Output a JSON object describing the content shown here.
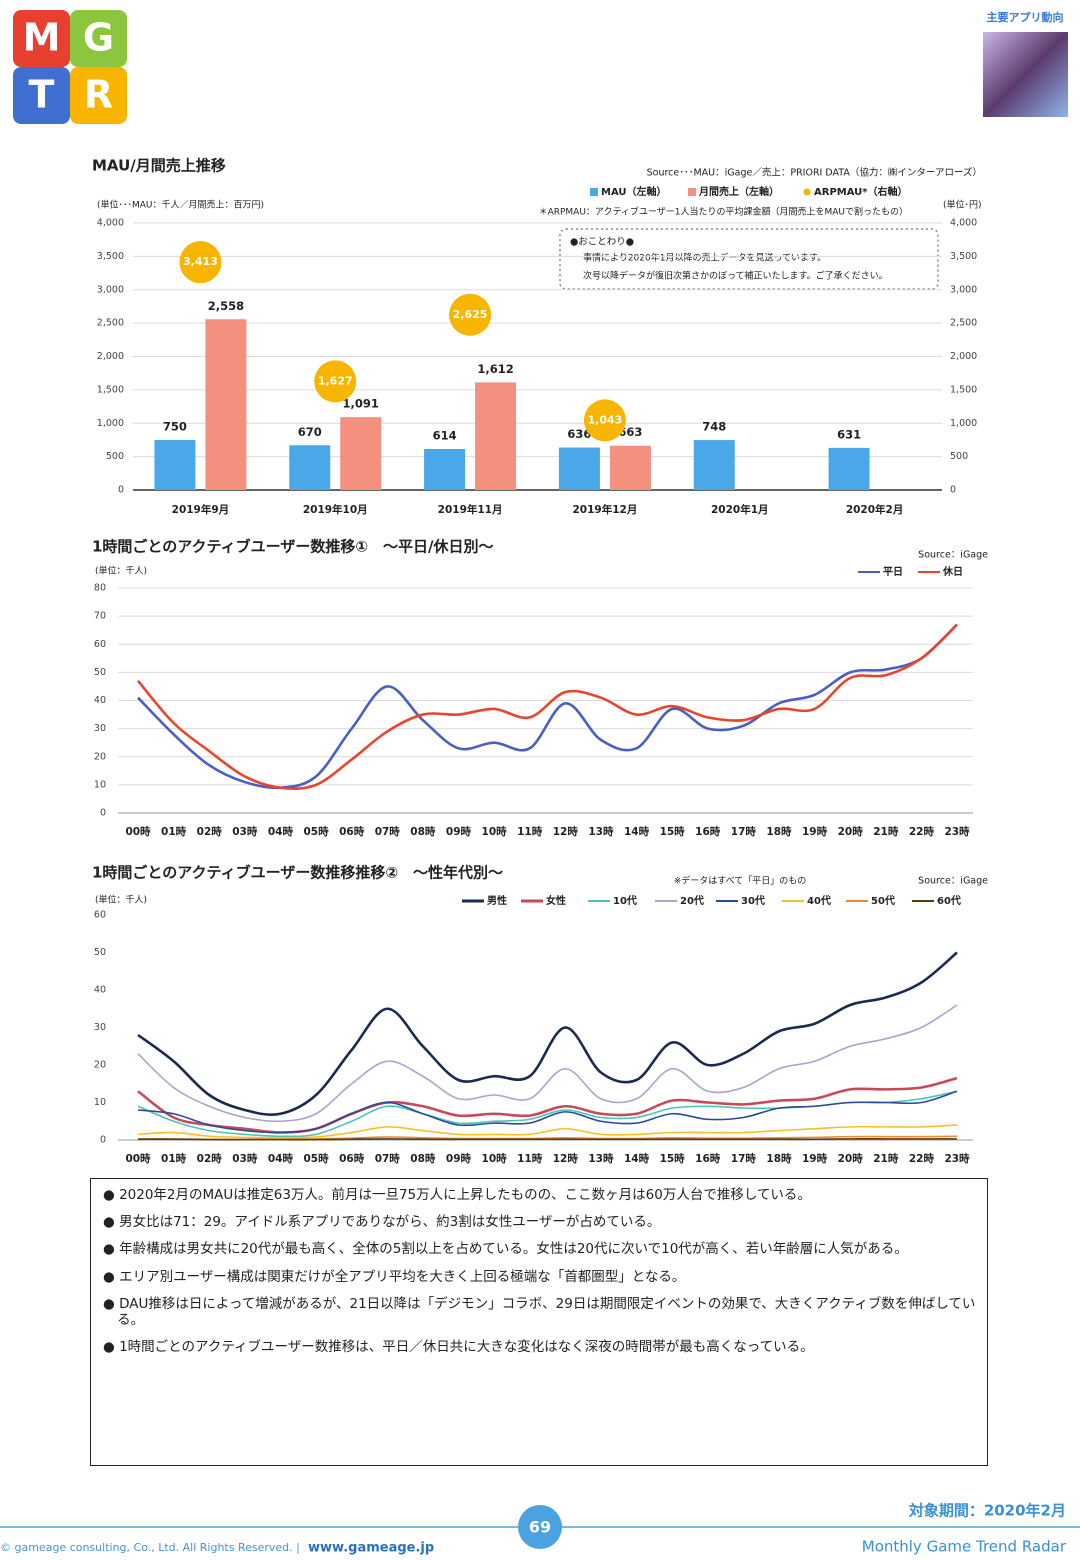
{
  "header": {
    "logo": [
      "M",
      "G",
      "T",
      "R"
    ],
    "section": "主要アプリ動向"
  },
  "chart_data": [
    {
      "type": "bar",
      "title": "MAU/月間売上推移",
      "source": "Source･･･MAU：iGage／売上：PRIORI DATA（協力：㈱インターアローズ）",
      "unit_left": "(単位･･･MAU：千人／月間売上：百万円)",
      "unit_right": "(単位･円)",
      "note": "＊ARPMAU：アクティブユーザー1人当たりの平均課金額（月間売上をMAUで割ったもの）",
      "notice": {
        "heading": "●おことわり●",
        "lines": [
          "事情により2020年1月以降の売上データを見送っています。",
          "次号以降データが復旧次第さかのぼって補正いたします。ご了承ください。"
        ]
      },
      "categories": [
        "2019年9月",
        "2019年10月",
        "2019年11月",
        "2019年12月",
        "2020年1月",
        "2020年2月"
      ],
      "series": [
        {
          "name": "MAU（左軸）",
          "color": "#4aa8e8",
          "values": [
            750,
            670,
            614,
            636,
            748,
            631
          ]
        },
        {
          "name": "月間売上（左軸）",
          "color": "#f4907e",
          "values": [
            2558,
            1091,
            1612,
            663,
            null,
            null
          ],
          "value_labels": [
            "2,558",
            "1,091",
            "1,612",
            "663",
            null,
            null
          ]
        },
        {
          "name": "ARPMAU*（右軸）",
          "color": "#f7b500",
          "axis": "y2",
          "marker": "circle",
          "values": [
            3413,
            1627,
            2625,
            1043,
            null,
            null
          ],
          "value_labels": [
            "3,413",
            "1,627",
            "2,625",
            "1,043",
            null,
            null
          ]
        }
      ],
      "ylim": [
        0,
        4000
      ],
      "yticks": [
        0,
        500,
        {
          "value": 1000,
          "label": "1,000"
        },
        {
          "value": 1500,
          "label": "1,500"
        },
        {
          "value": 2000,
          "label": "2,000"
        },
        {
          "value": 2500,
          "label": "2,500"
        },
        {
          "value": 3000,
          "label": "3,000"
        },
        {
          "value": 3500,
          "label": "3,500"
        },
        {
          "value": 4000,
          "label": "4,000"
        }
      ],
      "y2lim": [
        0,
        4000
      ],
      "y2ticks": [
        0,
        500,
        {
          "value": 1000,
          "label": "1,000"
        },
        {
          "value": 1500,
          "label": "1,500"
        },
        {
          "value": 2000,
          "label": "2,000"
        },
        {
          "value": 2500,
          "label": "2,500"
        },
        {
          "value": 3000,
          "label": "3,000"
        },
        {
          "value": 3500,
          "label": "3,500"
        },
        {
          "value": 4000,
          "label": "4,000"
        }
      ],
      "grid": true
    },
    {
      "type": "line",
      "title": "1時間ごとのアクティブユーザー数推移①　～平日/休日別～",
      "source": "Source：iGage",
      "unit": "(単位：千人)",
      "categories": [
        "00時",
        "01時",
        "02時",
        "03時",
        "04時",
        "05時",
        "06時",
        "07時",
        "08時",
        "09時",
        "10時",
        "11時",
        "12時",
        "13時",
        "14時",
        "15時",
        "16時",
        "17時",
        "18時",
        "19時",
        "20時",
        "21時",
        "22時",
        "23時"
      ],
      "series": [
        {
          "name": "平日",
          "color": "#4a5fc1",
          "values": [
            41,
            28,
            17,
            11,
            9,
            13,
            30,
            45,
            33,
            23,
            25,
            23,
            39,
            26,
            23,
            37,
            30,
            31,
            39,
            42,
            50,
            51,
            55,
            67
          ]
        },
        {
          "name": "休日",
          "color": "#e8452c",
          "values": [
            47,
            32,
            22,
            13,
            9,
            10,
            19,
            29,
            35,
            35,
            37,
            34,
            43,
            41,
            35,
            38,
            34,
            33,
            37,
            37,
            48,
            49,
            55,
            67
          ]
        }
      ],
      "ylim": [
        0,
        80
      ],
      "yticks": [
        0,
        10,
        20,
        30,
        40,
        50,
        60,
        70,
        80
      ],
      "grid": true
    },
    {
      "type": "line",
      "title": "1時間ごとのアクティブユーザー数推移推移②　～性年代別～",
      "note": "※データはすべて「平日」のもの",
      "source": "Source：iGage",
      "unit": "(単位：千人)",
      "categories": [
        "00時",
        "01時",
        "02時",
        "03時",
        "04時",
        "05時",
        "06時",
        "07時",
        "08時",
        "09時",
        "10時",
        "11時",
        "12時",
        "13時",
        "14時",
        "15時",
        "16時",
        "17時",
        "18時",
        "19時",
        "20時",
        "21時",
        "22時",
        "23時"
      ],
      "series": [
        {
          "name": "男性",
          "color": "#1b2a4e",
          "values": [
            28,
            21,
            12,
            8,
            7,
            12,
            24,
            35,
            25,
            16,
            17,
            17,
            30,
            18,
            16,
            26,
            20,
            23,
            29,
            31,
            36,
            38,
            42,
            50
          ]
        },
        {
          "name": "女性",
          "color": "#c84a5a",
          "values": [
            13,
            6,
            4,
            3,
            2,
            3,
            7,
            10,
            9,
            6.5,
            7,
            6.5,
            9,
            7,
            7,
            10.5,
            10,
            9.5,
            10.5,
            11,
            13.5,
            13.5,
            14,
            16.5
          ]
        },
        {
          "name": "10代",
          "color": "#4cc4b4",
          "values": [
            9,
            5,
            2.5,
            1.5,
            1,
            1.5,
            5,
            9,
            7,
            4.5,
            5,
            5.5,
            8,
            6,
            6,
            8.5,
            9,
            8.5,
            8.5,
            9,
            10,
            10,
            11,
            13
          ]
        },
        {
          "name": "20代",
          "color": "#a9a4cc",
          "values": [
            23,
            14,
            9,
            6,
            5,
            7,
            15,
            21,
            17,
            11,
            12,
            11,
            19,
            11,
            11,
            19,
            13,
            14,
            19,
            21,
            25,
            27,
            30,
            36
          ]
        },
        {
          "name": "30代",
          "color": "#2b4a9a",
          "values": [
            8,
            7,
            4,
            2.5,
            2,
            3,
            7,
            10,
            7,
            4,
            4.5,
            4.5,
            7.5,
            5,
            4.5,
            7,
            5.5,
            6,
            8.5,
            9,
            10,
            10,
            10,
            13
          ]
        },
        {
          "name": "40代",
          "color": "#f5c022",
          "values": [
            1.5,
            2,
            1,
            0.7,
            0.6,
            0.8,
            2,
            3.5,
            2.5,
            1.5,
            1.5,
            1.5,
            3,
            1.5,
            1.5,
            2,
            2,
            2,
            2.5,
            3,
            3.5,
            3.5,
            3.5,
            4
          ]
        },
        {
          "name": "50代",
          "color": "#f08a30",
          "values": [
            0.3,
            0.3,
            0.2,
            0.2,
            0.2,
            0.3,
            0.5,
            0.8,
            0.6,
            0.4,
            0.4,
            0.4,
            0.6,
            0.4,
            0.4,
            0.6,
            0.5,
            0.5,
            0.6,
            0.7,
            0.9,
            0.9,
            0.9,
            1
          ]
        },
        {
          "name": "60代",
          "color": "#5a3a10",
          "values": [
            0.2,
            0.2,
            0.1,
            0.1,
            0.1,
            0.1,
            0.2,
            0.3,
            0.2,
            0.2,
            0.2,
            0.2,
            0.2,
            0.2,
            0.2,
            0.2,
            0.2,
            0.2,
            0.2,
            0.2,
            0.3,
            0.3,
            0.3,
            0.3
          ]
        }
      ],
      "ylim": [
        0,
        60
      ],
      "yticks": [
        0,
        10,
        20,
        30,
        40,
        50,
        60
      ],
      "grid": false
    }
  ],
  "notes": [
    "● 2020年2月のMAUは推定63万人。前月は一旦75万人に上昇したものの、ここ数ヶ月は60万人台で推移している。",
    "● 男女比は71：29。アイドル系アプリでありながら、約3割は女性ユーザーが占めている。",
    "● 年齢構成は男女共に20代が最も高く、全体の5割以上を占めている。女性は20代に次いで10代が高く、若い年齢層に人気がある。",
    "● エリア別ユーザー構成は関東だけが全アプリ平均を大きく上回る極端な「首都圏型」となる。",
    "● DAU推移は日によって増減があるが、21日以降は「デジモン」コラボ、29日は期間限定イベントの効果で、大きくアクティブ数を伸ばしている。",
    "● 1時間ごとのアクティブユーザー数推移は、平日／休日共に大きな変化はなく深夜の時間帯が最も高くなっている。"
  ],
  "footer": {
    "period": "対象期間：2020年2月",
    "copyright": "© gameage consulting, Co., Ltd. All Rights Reserved. |",
    "site": "www.gameage.jp",
    "page": "69",
    "brand": "Monthly Game Trend Radar"
  }
}
